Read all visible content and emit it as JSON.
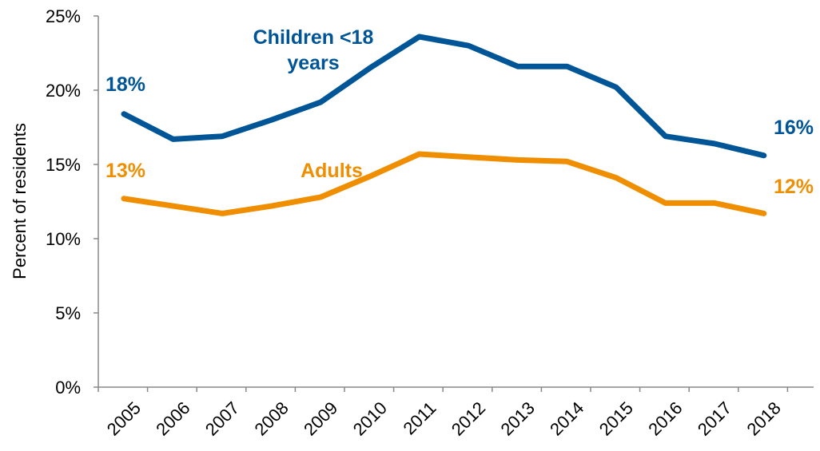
{
  "chart_data": {
    "type": "line",
    "x": [
      "2005",
      "2006",
      "2007",
      "2008",
      "2009",
      "2010",
      "2011",
      "2012",
      "2013",
      "2014",
      "2015",
      "2016",
      "2017",
      "2018"
    ],
    "ylabel": "Percent of residents",
    "xlabel": "",
    "ylim": [
      0,
      25
    ],
    "yticks": [
      "0%",
      "5%",
      "10%",
      "15%",
      "20%",
      "25%"
    ],
    "grid": false,
    "series": [
      {
        "name": "Children <18 years",
        "name_lines": [
          "Children <18",
          "years"
        ],
        "color": "#005596",
        "values": [
          18.4,
          16.7,
          16.9,
          18.0,
          19.2,
          21.5,
          23.6,
          23.0,
          21.6,
          21.6,
          20.2,
          16.9,
          16.4,
          15.6
        ],
        "start_label": "18%",
        "end_label": "16%"
      },
      {
        "name": "Adults",
        "name_lines": [
          "Adults"
        ],
        "color": "#EF8E00",
        "values": [
          12.7,
          12.2,
          11.7,
          12.2,
          12.8,
          14.2,
          15.7,
          15.5,
          15.3,
          15.2,
          14.1,
          12.4,
          12.4,
          11.7
        ],
        "start_label": "13%",
        "end_label": "12%"
      }
    ]
  }
}
